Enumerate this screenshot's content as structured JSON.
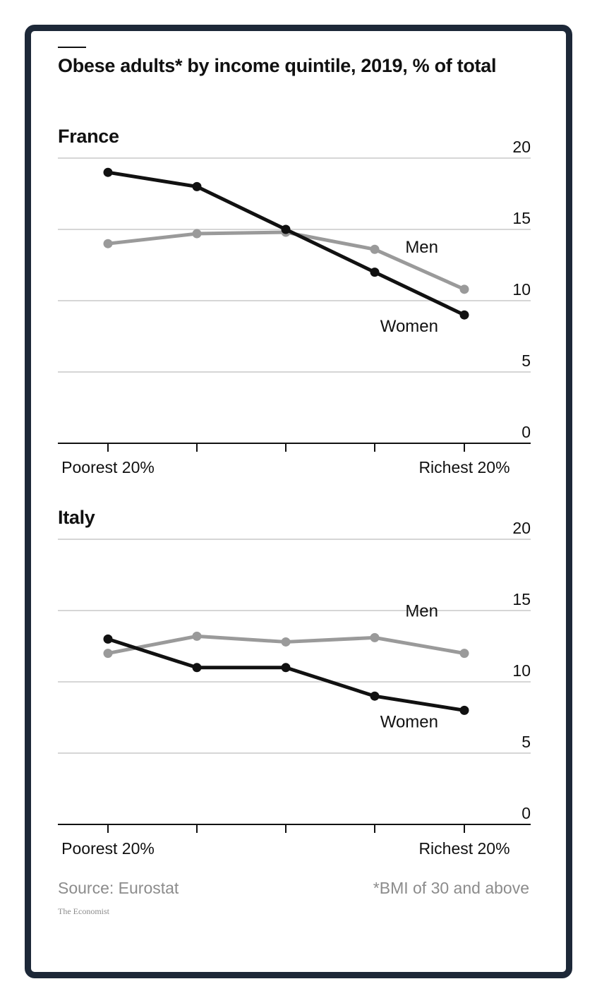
{
  "header": {
    "title": "Obese adults* by income quintile, 2019, % of total"
  },
  "colors": {
    "frame": "#1d2838",
    "women": "#111111",
    "men": "#9a9a9a",
    "grid": "#d6d6d6",
    "muted_text": "#8c8c8c"
  },
  "chart_data": [
    {
      "type": "line",
      "title": "France",
      "categories": [
        "Poorest 20%",
        "",
        "",
        "",
        "Richest 20%"
      ],
      "ylim": [
        0,
        20
      ],
      "yticks": [
        "0",
        "5",
        "10",
        "15",
        "20"
      ],
      "grid": true,
      "series": [
        {
          "name": "Men",
          "values": [
            14.0,
            14.7,
            14.8,
            13.6,
            10.8
          ]
        },
        {
          "name": "Women",
          "values": [
            19.0,
            18.0,
            15.0,
            12.0,
            9.0
          ]
        }
      ]
    },
    {
      "type": "line",
      "title": "Italy",
      "categories": [
        "Poorest 20%",
        "",
        "",
        "",
        "Richest 20%"
      ],
      "ylim": [
        0,
        20
      ],
      "yticks": [
        "0",
        "5",
        "10",
        "15",
        "20"
      ],
      "grid": true,
      "series": [
        {
          "name": "Men",
          "values": [
            12.0,
            13.2,
            12.8,
            13.1,
            12.0
          ]
        },
        {
          "name": "Women",
          "values": [
            13.0,
            11.0,
            11.0,
            9.0,
            8.0
          ]
        }
      ]
    }
  ],
  "footer": {
    "source": "Source: Eurostat",
    "note": "*BMI of 30 and above",
    "brand": "The Economist"
  }
}
